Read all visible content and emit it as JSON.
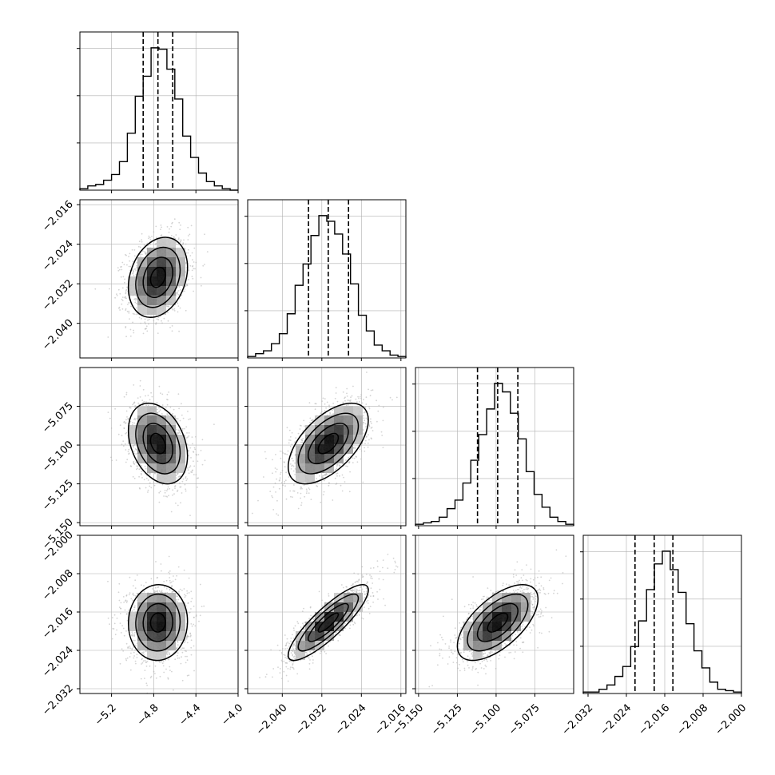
{
  "chart_data": {
    "type": "corner",
    "parameters": [
      {
        "name": "",
        "range": [
          -5.5,
          -4.0
        ],
        "ticks": [
          -5.2,
          -4.8,
          -4.4,
          -4.0
        ],
        "tick_labels": [
          "−5.2",
          "−4.8",
          "−4.4",
          "−4.0"
        ],
        "quantiles": [
          -4.9,
          -4.76,
          -4.62
        ],
        "hist": [
          1,
          3,
          4,
          7,
          11,
          20,
          40,
          66,
          80,
          100,
          99,
          85,
          64,
          38,
          23,
          12,
          6,
          3,
          1,
          0
        ],
        "hist_y_ticks": 3
      },
      {
        "name": "",
        "range": [
          -2.047,
          -2.015
        ],
        "ticks": [
          -2.04,
          -2.032,
          -2.024,
          -2.016
        ],
        "tick_labels": [
          "−2.040",
          "−2.032",
          "−2.024",
          "−2.016"
        ],
        "quantiles": [
          -2.0347,
          -2.0307,
          -2.0266
        ],
        "hist": [
          1,
          3,
          5,
          10,
          17,
          31,
          51,
          66,
          86,
          100,
          96,
          87,
          73,
          52,
          30,
          19,
          9,
          5,
          2,
          1
        ],
        "hist_y_ticks": 3
      },
      {
        "name": "",
        "range": [
          -5.152,
          -5.05
        ],
        "ticks": [
          -5.15,
          -5.125,
          -5.1,
          -5.075
        ],
        "tick_labels": [
          "−5.150",
          "−5.125",
          "−5.100",
          "−5.075"
        ],
        "quantiles": [
          -5.112,
          -5.099,
          -5.086
        ],
        "hist": [
          1,
          2,
          3,
          6,
          12,
          18,
          30,
          46,
          64,
          82,
          100,
          94,
          79,
          61,
          38,
          22,
          13,
          6,
          3,
          1
        ],
        "hist_y_ticks": 3
      },
      {
        "name": "",
        "range": [
          -2.033,
          -2.0
        ],
        "ticks": [
          -2.032,
          -2.024,
          -2.016,
          -2.008,
          -2.0
        ],
        "tick_labels": [
          "−2.032",
          "−2.024",
          "−2.016",
          "−2.008",
          "−2.000"
        ],
        "quantiles": [
          -2.0222,
          -2.0182,
          -2.0143
        ],
        "hist": [
          1,
          1,
          3,
          6,
          12,
          19,
          33,
          51,
          73,
          91,
          100,
          87,
          71,
          49,
          30,
          18,
          8,
          3,
          2,
          1
        ],
        "hist_y_ticks": 3
      }
    ],
    "correlations": {
      "1-0": 0.25,
      "2-0": -0.32,
      "2-1": 0.58,
      "3-0": 0.03,
      "3-1": 0.86,
      "3-2": 0.62
    },
    "colors": {
      "hist_line": "#000000",
      "quantile_line": "#000000",
      "scatter_points": "#b0b0b0",
      "density_dark": "#000000",
      "density_light": "#ffffff",
      "grid": "#b0b0b0"
    },
    "grid": true,
    "xlabel": "",
    "ylabel": "",
    "title": ""
  }
}
